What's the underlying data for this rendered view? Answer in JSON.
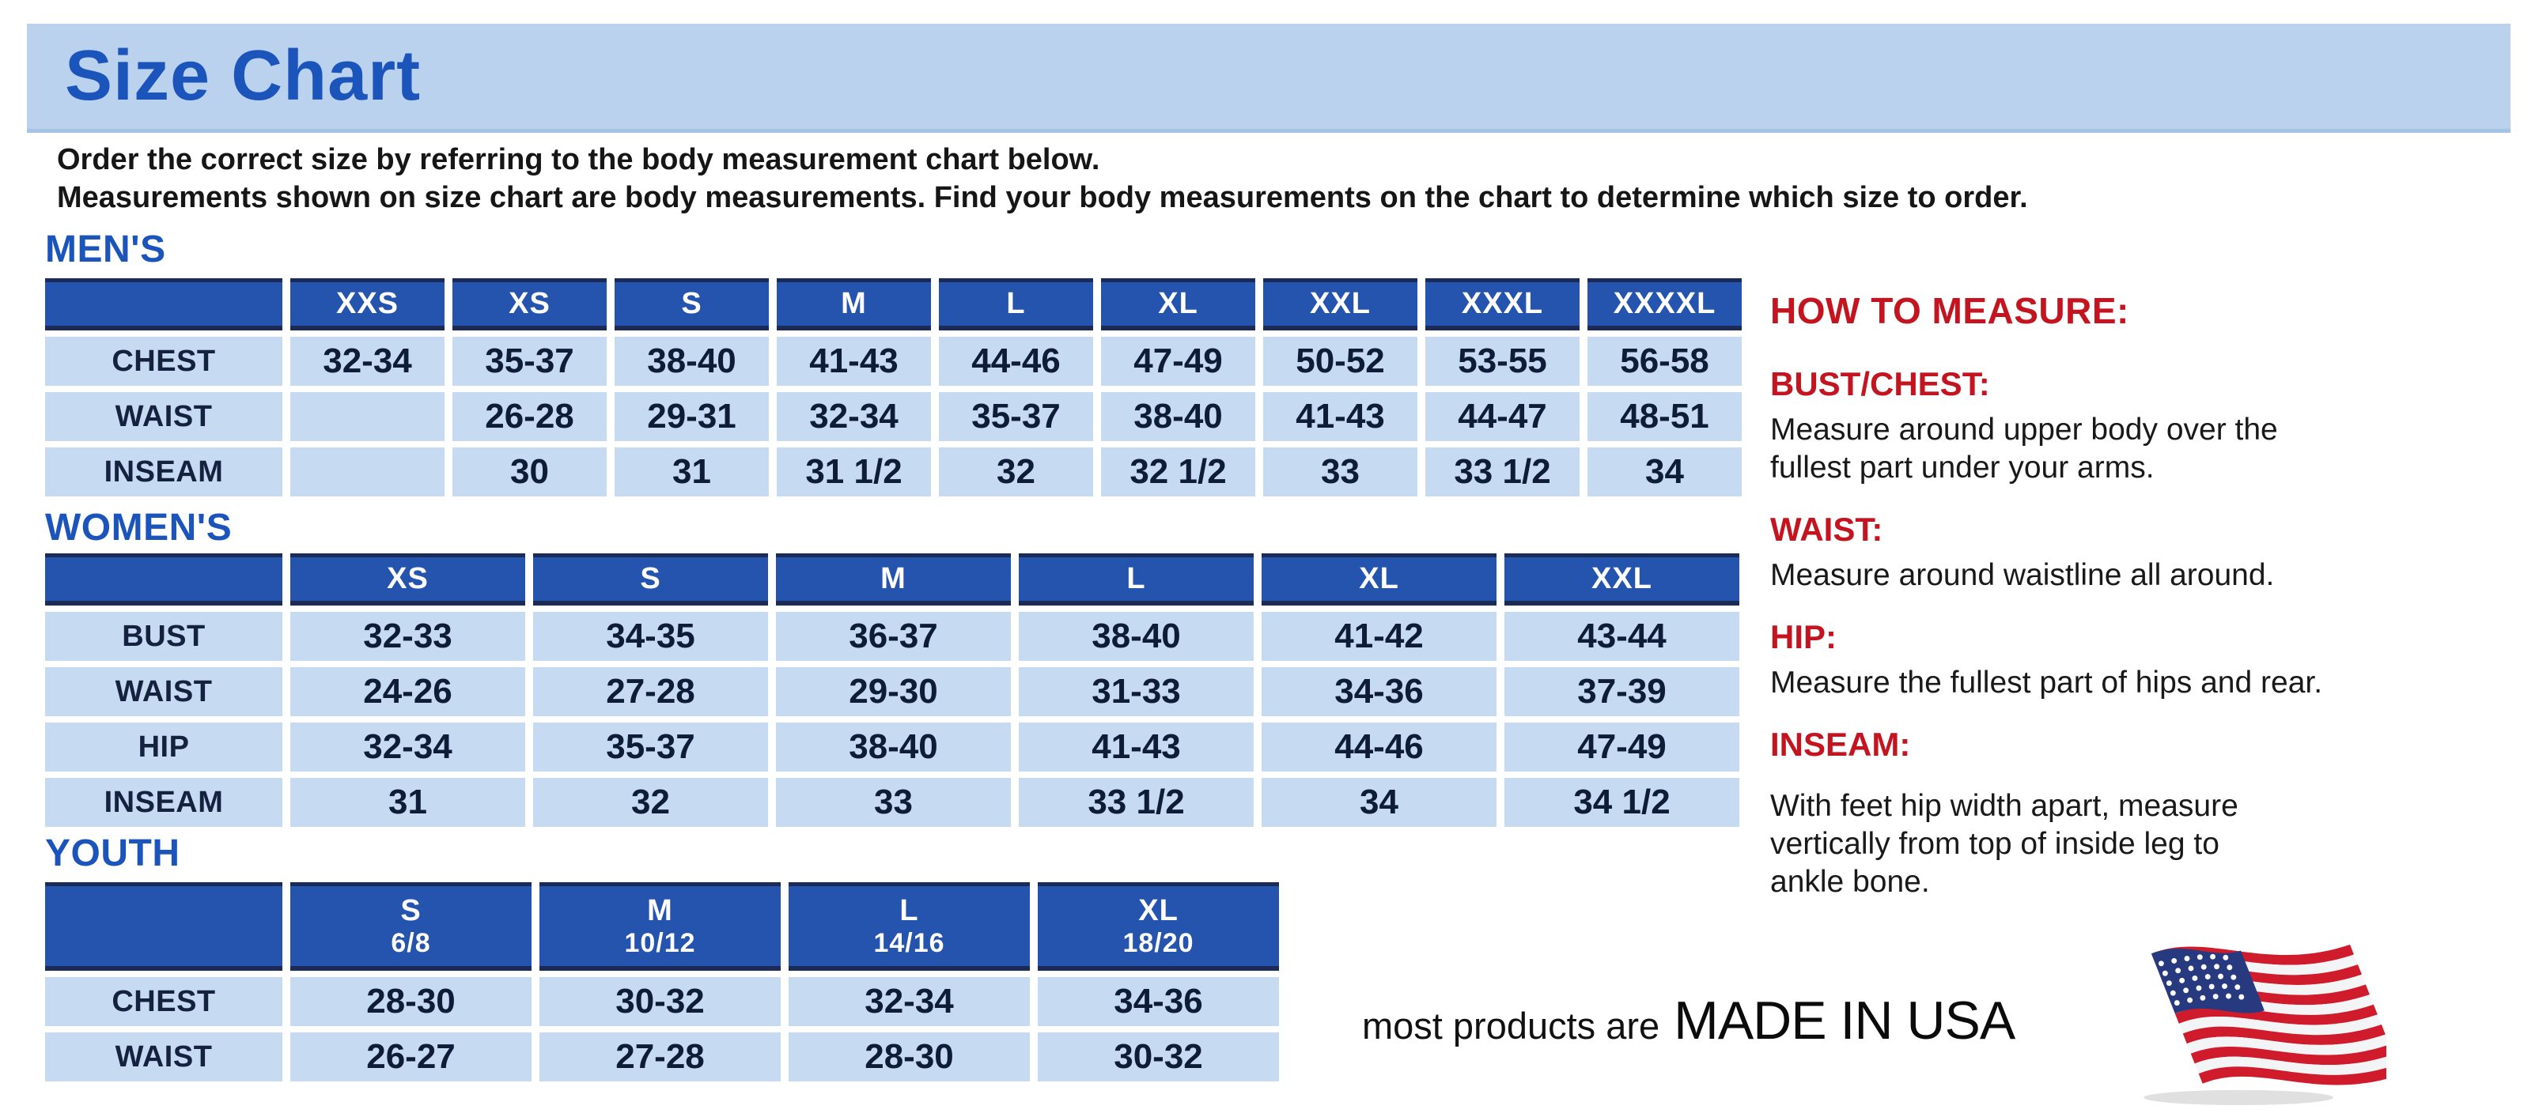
{
  "page": {
    "title": "Size Chart",
    "intro_line1": "Order the correct size by referring to the body measurement chart below.",
    "intro_line2": "Measurements shown on size chart are body measurements.  Find your body measurements on the chart to determine which size to order."
  },
  "tables": {
    "mens": {
      "label": "MEN'S",
      "columns": [
        "XXS",
        "XS",
        "S",
        "M",
        "L",
        "XL",
        "XXL",
        "XXXL",
        "XXXXL"
      ],
      "rows": [
        {
          "label": "CHEST",
          "values": [
            "32-34",
            "35-37",
            "38-40",
            "41-43",
            "44-46",
            "47-49",
            "50-52",
            "53-55",
            "56-58"
          ]
        },
        {
          "label": "WAIST",
          "values": [
            "",
            "26-28",
            "29-31",
            "32-34",
            "35-37",
            "38-40",
            "41-43",
            "44-47",
            "48-51"
          ]
        },
        {
          "label": "INSEAM",
          "values": [
            "",
            "30",
            "31",
            "31 1/2",
            "32",
            "32 1/2",
            "33",
            "33 1/2",
            "34"
          ]
        }
      ]
    },
    "womens": {
      "label": "WOMEN'S",
      "columns": [
        "XS",
        "S",
        "M",
        "L",
        "XL",
        "XXL"
      ],
      "rows": [
        {
          "label": "BUST",
          "values": [
            "32-33",
            "34-35",
            "36-37",
            "38-40",
            "41-42",
            "43-44"
          ]
        },
        {
          "label": "WAIST",
          "values": [
            "24-26",
            "27-28",
            "29-30",
            "31-33",
            "34-36",
            "37-39"
          ]
        },
        {
          "label": "HIP",
          "values": [
            "32-34",
            "35-37",
            "38-40",
            "41-43",
            "44-46",
            "47-49"
          ]
        },
        {
          "label": "INSEAM",
          "values": [
            "31",
            "32",
            "33",
            "33 1/2",
            "34",
            "34 1/2"
          ]
        }
      ]
    },
    "youth": {
      "label": "YOUTH",
      "columns": [
        {
          "size": "S",
          "range": "6/8"
        },
        {
          "size": "M",
          "range": "10/12"
        },
        {
          "size": "L",
          "range": "14/16"
        },
        {
          "size": "XL",
          "range": "18/20"
        }
      ],
      "rows": [
        {
          "label": "CHEST",
          "values": [
            "28-30",
            "30-32",
            "32-34",
            "34-36"
          ]
        },
        {
          "label": "WAIST",
          "values": [
            "26-27",
            "27-28",
            "28-30",
            "30-32"
          ]
        }
      ]
    }
  },
  "how_to_measure": {
    "title": "HOW TO MEASURE:",
    "items": [
      {
        "label": "BUST/CHEST:",
        "text": "Measure around upper body over the\nfullest part under your arms."
      },
      {
        "label": "WAIST:",
        "text": "Measure around waistline all around."
      },
      {
        "label": "HIP:",
        "text": "Measure the fullest part of hips and rear."
      },
      {
        "label": "INSEAM:",
        "text": "With feet hip width apart, measure\nvertically from top of inside leg to\nankle bone."
      }
    ]
  },
  "footer": {
    "prefix": "most products are",
    "emphasis": "MADE IN USA",
    "flag_icon": "us-flag-icon"
  },
  "colors": {
    "banner_blue": "#bad2ed",
    "title_blue": "#1b55bb",
    "header_cell_blue": "#2454ae",
    "header_border_navy": "#1c2b56",
    "data_cell_blue": "#c6daf2",
    "cell_text_navy": "#0e1c38",
    "accent_red": "#c41420",
    "flag_red": "#cf1b2b",
    "flag_blue": "#27397f",
    "flag_white": "#f3f4f6"
  }
}
